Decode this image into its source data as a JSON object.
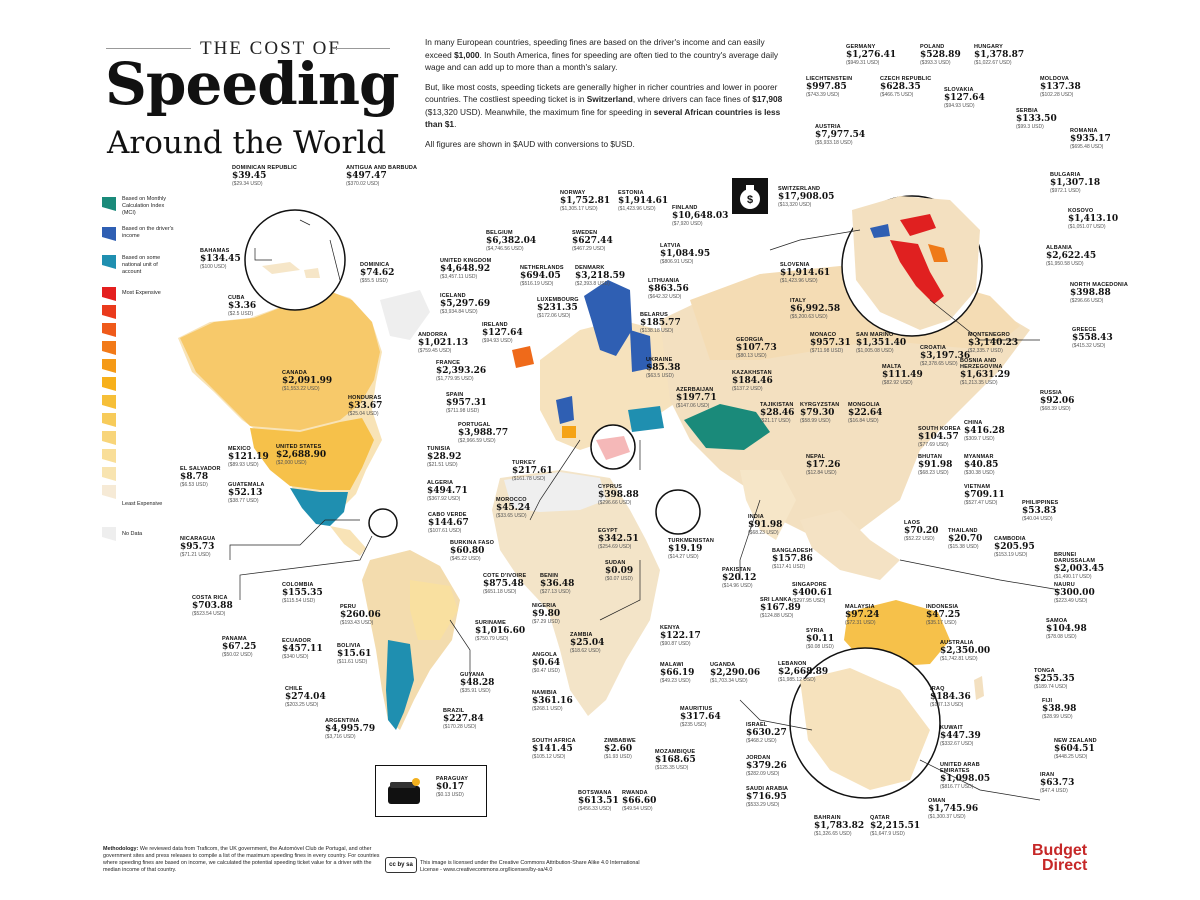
{
  "header": {
    "small_title": "THE COST OF",
    "big_title": "Speeding",
    "subtitle": "Around the World"
  },
  "intro": {
    "p1_a": "In many European countries, speeding fines are based on the driver's income and can easily exceed ",
    "p1_b": "$1,000",
    "p1_c": ". In South America, fines for speeding are often tied to the country's average daily wage and can add up to more than a month's salary.",
    "p2_a": "But, like most costs, speeding tickets are generally higher in richer countries and lower in poorer countries. The costliest speeding ticket is in ",
    "p2_b": "Switzerland",
    "p2_c": ", where drivers can face fines of ",
    "p2_d": "$17,908",
    "p2_e": " ($13,320 USD). Meanwhile, the maximum fine for speeding in ",
    "p2_f": "several African countries is less than $1",
    "p2_g": ".",
    "p3": "All figures are shown in $AUD with conversions to $USD."
  },
  "legend": {
    "items": [
      {
        "label": "Based on Monthly Calculation Index (MCI)",
        "color": "#1a8a7a"
      },
      {
        "label": "Based on the driver's income",
        "color": "#2f5fb3"
      },
      {
        "label": "Based on some national unit of account",
        "color": "#1f8fb0"
      },
      {
        "label": "Most Expensive",
        "color": "#e02020"
      },
      {
        "label": "Least Expensive",
        "color": "#f6ead6"
      },
      {
        "label": "No Data",
        "color": "#eeeeee"
      }
    ],
    "gradient": [
      "#e41f1f",
      "#ea3a1c",
      "#ef5a1a",
      "#f27a18",
      "#f59a16",
      "#f7b01a",
      "#f6bf38",
      "#f7cb5a",
      "#f8d57a",
      "#f9de98",
      "#f8e4b0",
      "#f6ead6"
    ]
  },
  "countries": [
    {
      "name": "Dominican Republic",
      "value": "$39.45",
      "usd": "($29.34 USD)"
    },
    {
      "name": "Antigua and Barbuda",
      "value": "$497.47",
      "usd": "($370.02 USD)"
    },
    {
      "name": "Bahamas",
      "value": "$134.45",
      "usd": "($100 USD)"
    },
    {
      "name": "Dominica",
      "value": "$74.62",
      "usd": "($55.5 USD)"
    },
    {
      "name": "Cuba",
      "value": "$3.36",
      "usd": "($2.5 USD)"
    },
    {
      "name": "Canada",
      "value": "$2,091.99",
      "usd": "($1,553.22 USD)"
    },
    {
      "name": "Honduras",
      "value": "$33.67",
      "usd": "($25.04 USD)"
    },
    {
      "name": "United States",
      "value": "$2,688.90",
      "usd": "($2,000 USD)"
    },
    {
      "name": "Mexico",
      "value": "$121.19",
      "usd": "($89.93 USD)"
    },
    {
      "name": "El Salvador",
      "value": "$8.78",
      "usd": "($6.53 USD)"
    },
    {
      "name": "Guatemala",
      "value": "$52.13",
      "usd": "($38.77 USD)"
    },
    {
      "name": "Nicaragua",
      "value": "$95.73",
      "usd": "($71.21 USD)"
    },
    {
      "name": "Colombia",
      "value": "$155.35",
      "usd": "($115.54 USD)"
    },
    {
      "name": "Costa Rica",
      "value": "$703.88",
      "usd": "($523.54 USD)"
    },
    {
      "name": "Peru",
      "value": "$260.06",
      "usd": "($193.43 USD)"
    },
    {
      "name": "Panama",
      "value": "$67.25",
      "usd": "($50.02 USD)"
    },
    {
      "name": "Ecuador",
      "value": "$457.11",
      "usd": "($340 USD)"
    },
    {
      "name": "Bolivia",
      "value": "$15.61",
      "usd": "($11.61 USD)"
    },
    {
      "name": "Chile",
      "value": "$274.04",
      "usd": "($203.25 USD)"
    },
    {
      "name": "Argentina",
      "value": "$4,995.79",
      "usd": "($3,716 USD)"
    },
    {
      "name": "Suriname",
      "value": "$1,016.60",
      "usd": "($750.79 USD)"
    },
    {
      "name": "Guyana",
      "value": "$48.28",
      "usd": "($35.91 USD)"
    },
    {
      "name": "Brazil",
      "value": "$227.84",
      "usd": "($170.28 USD)"
    },
    {
      "name": "Paraguay",
      "value": "$0.17",
      "usd": "($0.13 USD)"
    },
    {
      "name": "Norway",
      "value": "$1,752.81",
      "usd": "($1,305.17 USD)"
    },
    {
      "name": "Estonia",
      "value": "$1,914.61",
      "usd": "($1,423.96 USD)"
    },
    {
      "name": "Finland",
      "value": "$10,648.03",
      "usd": "($7,920 USD)"
    },
    {
      "name": "Belgium",
      "value": "$6,382.04",
      "usd": "($4,746.56 USD)"
    },
    {
      "name": "Sweden",
      "value": "$627.44",
      "usd": "($467.29 USD)"
    },
    {
      "name": "Latvia",
      "value": "$1,084.95",
      "usd": "($806.91 USD)"
    },
    {
      "name": "United Kingdom",
      "value": "$4,648.92",
      "usd": "($3,457.11 USD)"
    },
    {
      "name": "Netherlands",
      "value": "$694.05",
      "usd": "($516.19 USD)"
    },
    {
      "name": "Denmark",
      "value": "$3,218.59",
      "usd": "($2,393.8 USD)"
    },
    {
      "name": "Lithuania",
      "value": "$863.56",
      "usd": "($642.32 USD)"
    },
    {
      "name": "Iceland",
      "value": "$5,297.69",
      "usd": "($3,934.84 USD)"
    },
    {
      "name": "Luxembourg",
      "value": "$231.35",
      "usd": "($172.06 USD)"
    },
    {
      "name": "Belarus",
      "value": "$185.77",
      "usd": "($138.18 USD)"
    },
    {
      "name": "Ireland",
      "value": "$127.64",
      "usd": "($94.93 USD)"
    },
    {
      "name": "Andorra",
      "value": "$1,021.13",
      "usd": "($759.45 USD)"
    },
    {
      "name": "Ukraine",
      "value": "$85.38",
      "usd": "($63.5 USD)"
    },
    {
      "name": "France",
      "value": "$2,393.26",
      "usd": "($1,779.95 USD)"
    },
    {
      "name": "Georgia",
      "value": "$107.73",
      "usd": "($80.13 USD)"
    },
    {
      "name": "Spain",
      "value": "$957.31",
      "usd": "($711.98 USD)"
    },
    {
      "name": "Azerbaijan",
      "value": "$197.71",
      "usd": "($147.06 USD)"
    },
    {
      "name": "Kazakhstan",
      "value": "$184.46",
      "usd": "($137.2 USD)"
    },
    {
      "name": "Portugal",
      "value": "$3,988.77",
      "usd": "($2,966.59 USD)"
    },
    {
      "name": "Tajikistan",
      "value": "$28.46",
      "usd": "($21.17 USD)"
    },
    {
      "name": "Kyrgyzstan",
      "value": "$79.30",
      "usd": "($58.99 USD)"
    },
    {
      "name": "Mongolia",
      "value": "$22.64",
      "usd": "($16.84 USD)"
    },
    {
      "name": "Tunisia",
      "value": "$28.92",
      "usd": "($21.51 USD)"
    },
    {
      "name": "Turkey",
      "value": "$217.61",
      "usd": "($161.78 USD)"
    },
    {
      "name": "Algeria",
      "value": "$494.71",
      "usd": "($367.92 USD)"
    },
    {
      "name": "Cyprus",
      "value": "$398.88",
      "usd": "($296.66 USD)"
    },
    {
      "name": "Morocco",
      "value": "$45.24",
      "usd": "($33.65 USD)"
    },
    {
      "name": "Cabo Verde",
      "value": "$144.67",
      "usd": "($107.61 USD)"
    },
    {
      "name": "Egypt",
      "value": "$342.51",
      "usd": "($254.69 USD)"
    },
    {
      "name": "Burkina Faso",
      "value": "$60.80",
      "usd": "($45.22 USD)"
    },
    {
      "name": "Turkmenistan",
      "value": "$19.19",
      "usd": "($14.27 USD)"
    },
    {
      "name": "Sudan",
      "value": "$0.09",
      "usd": "($0.07 USD)"
    },
    {
      "name": "Cote d'Ivoire",
      "value": "$875.48",
      "usd": "($651.18 USD)"
    },
    {
      "name": "Benin",
      "value": "$36.48",
      "usd": "($27.13 USD)"
    },
    {
      "name": "Nigeria",
      "value": "$9.80",
      "usd": "($7.29 USD)"
    },
    {
      "name": "Pakistan",
      "value": "$20.12",
      "usd": "($14.96 USD)"
    },
    {
      "name": "Sri Lanka",
      "value": "$167.89",
      "usd": "($124.88 USD)"
    },
    {
      "name": "Zambia",
      "value": "$25.04",
      "usd": "($18.62 USD)"
    },
    {
      "name": "Angola",
      "value": "$0.64",
      "usd": "($0.47 USD)"
    },
    {
      "name": "Kenya",
      "value": "$122.17",
      "usd": "($90.87 USD)"
    },
    {
      "name": "Malawi",
      "value": "$66.19",
      "usd": "($49.23 USD)"
    },
    {
      "name": "Uganda",
      "value": "$2,290.06",
      "usd": "($1,703.34 USD)"
    },
    {
      "name": "Namibia",
      "value": "$361.16",
      "usd": "($268.1 USD)"
    },
    {
      "name": "Mauritius",
      "value": "$317.64",
      "usd": "($235 USD)"
    },
    {
      "name": "South Africa",
      "value": "$141.45",
      "usd": "($105.12 USD)"
    },
    {
      "name": "Zimbabwe",
      "value": "$2.60",
      "usd": "($1.93 USD)"
    },
    {
      "name": "Mozambique",
      "value": "$168.65",
      "usd": "($125.35 USD)"
    },
    {
      "name": "Botswana",
      "value": "$613.51",
      "usd": "($456.33 USD)"
    },
    {
      "name": "Rwanda",
      "value": "$66.60",
      "usd": "($49.54 USD)"
    },
    {
      "name": "Switzerland",
      "value": "$17,908.05",
      "usd": "($13,320 USD)"
    },
    {
      "name": "Germany",
      "value": "$1,276.41",
      "usd": "($949.31 USD)"
    },
    {
      "name": "Poland",
      "value": "$528.89",
      "usd": "($393.3 USD)"
    },
    {
      "name": "Hungary",
      "value": "$1,378.87",
      "usd": "($1,022.67 USD)"
    },
    {
      "name": "Liechtenstein",
      "value": "$997.85",
      "usd": "($743.39 USD)"
    },
    {
      "name": "Czech Republic",
      "value": "$628.35",
      "usd": "($466.75 USD)"
    },
    {
      "name": "Moldova",
      "value": "$137.38",
      "usd": "($102.28 USD)"
    },
    {
      "name": "Slovakia",
      "value": "$127.64",
      "usd": "($94.93 USD)"
    },
    {
      "name": "Serbia",
      "value": "$133.50",
      "usd": "($99.3 USD)"
    },
    {
      "name": "Austria",
      "value": "$7,977.54",
      "usd": "($5,933.18 USD)"
    },
    {
      "name": "Romania",
      "value": "$935.17",
      "usd": "($695.48 USD)"
    },
    {
      "name": "Bulgaria",
      "value": "$1,307.18",
      "usd": "($972.1 USD)"
    },
    {
      "name": "Kosovo",
      "value": "$1,413.10",
      "usd": "($1,051.07 USD)"
    },
    {
      "name": "Slovenia",
      "value": "$1,914.61",
      "usd": "($1,423.96 USD)"
    },
    {
      "name": "Albania",
      "value": "$2,622.45",
      "usd": "($1,950.58 USD)"
    },
    {
      "name": "Italy",
      "value": "$6,992.58",
      "usd": "($5,200.63 USD)"
    },
    {
      "name": "North Macedonia",
      "value": "$398.88",
      "usd": "($296.66 USD)"
    },
    {
      "name": "Monaco",
      "value": "$957.31",
      "usd": "($711.98 USD)"
    },
    {
      "name": "San Marino",
      "value": "$1,351.40",
      "usd": "($1,005.08 USD)"
    },
    {
      "name": "Montenegro",
      "value": "$3,140.23",
      "usd": "($2,335.7 USD)"
    },
    {
      "name": "Greece",
      "value": "$558.43",
      "usd": "($415.32 USD)"
    },
    {
      "name": "Croatia",
      "value": "$3,197.36",
      "usd": "($2,378.65 USD)"
    },
    {
      "name": "Malta",
      "value": "$111.49",
      "usd": "($82.92 USD)"
    },
    {
      "name": "Bosnia and Herzegovina",
      "value": "$1,631.29",
      "usd": "($1,213.35 USD)"
    },
    {
      "name": "Russia",
      "value": "$92.06",
      "usd": "($68.39 USD)"
    },
    {
      "name": "China",
      "value": "$416.28",
      "usd": "($309.7 USD)"
    },
    {
      "name": "South Korea",
      "value": "$104.57",
      "usd": "($77.69 USD)"
    },
    {
      "name": "Nepal",
      "value": "$17.26",
      "usd": "($12.84 USD)"
    },
    {
      "name": "Bhutan",
      "value": "$91.98",
      "usd": "($68.23 USD)"
    },
    {
      "name": "Myanmar",
      "value": "$40.85",
      "usd": "($30.38 USD)"
    },
    {
      "name": "Vietnam",
      "value": "$709.11",
      "usd": "($527.47 USD)"
    },
    {
      "name": "India",
      "value": "$91.98",
      "usd": "($68.23 USD)"
    },
    {
      "name": "Philippines",
      "value": "$53.83",
      "usd": "($40.04 USD)"
    },
    {
      "name": "Laos",
      "value": "$70.20",
      "usd": "($52.22 USD)"
    },
    {
      "name": "Thailand",
      "value": "$20.70",
      "usd": "($15.38 USD)"
    },
    {
      "name": "Cambodia",
      "value": "$205.95",
      "usd": "($153.19 USD)"
    },
    {
      "name": "Bangladesh",
      "value": "$157.86",
      "usd": "($117.41 USD)"
    },
    {
      "name": "Brunei Darussalam",
      "value": "$2,003.45",
      "usd": "($1,490.17 USD)"
    },
    {
      "name": "Singapore",
      "value": "$400.61",
      "usd": "($297.95 USD)"
    },
    {
      "name": "Nauru",
      "value": "$300.00",
      "usd": "($223.49 USD)"
    },
    {
      "name": "Malaysia",
      "value": "$97.24",
      "usd": "($72.31 USD)"
    },
    {
      "name": "Indonesia",
      "value": "$47.25",
      "usd": "($35.17 USD)"
    },
    {
      "name": "Samoa",
      "value": "$104.98",
      "usd": "($78.08 USD)"
    },
    {
      "name": "Syria",
      "value": "$0.11",
      "usd": "($0.08 USD)"
    },
    {
      "name": "Australia",
      "value": "$2,350.00",
      "usd": "($1,742.81 USD)"
    },
    {
      "name": "Lebanon",
      "value": "$2,668.89",
      "usd": "($1,985.12 USD)"
    },
    {
      "name": "Tonga",
      "value": "$255.35",
      "usd": "($189.74 USD)"
    },
    {
      "name": "Iraq",
      "value": "$184.36",
      "usd": "($137.13 USD)"
    },
    {
      "name": "Fiji",
      "value": "$38.98",
      "usd": "($28.99 USD)"
    },
    {
      "name": "Israel",
      "value": "$630.27",
      "usd": "($468.2 USD)"
    },
    {
      "name": "Kuwait",
      "value": "$447.39",
      "usd": "($332.67 USD)"
    },
    {
      "name": "New Zealand",
      "value": "$604.51",
      "usd": "($448.25 USD)"
    },
    {
      "name": "Jordan",
      "value": "$379.26",
      "usd": "($282.09 USD)"
    },
    {
      "name": "United Arab Emirates",
      "value": "$1,098.05",
      "usd": "($816.77 USD)"
    },
    {
      "name": "Iran",
      "value": "$63.73",
      "usd": "($47.4 USD)"
    },
    {
      "name": "Saudi Arabia",
      "value": "$716.95",
      "usd": "($533.29 USD)"
    },
    {
      "name": "Oman",
      "value": "$1,745.96",
      "usd": "($1,300.37 USD)"
    },
    {
      "name": "Bahrain",
      "value": "$1,783.82",
      "usd": "($1,326.65 USD)"
    },
    {
      "name": "Qatar",
      "value": "$2,215.51",
      "usd": "($1,647.9 USD)"
    }
  ],
  "footer": {
    "method_label": "Methodology:",
    "method_text": " We reviewed data from Traficom, the UK government, the Automóvel Club de Portugal, and other government sites and press releases to compile a list of the maximum speeding fines in every country. For countries where speeding fines are based on income, we calculated the potential speeding ticket value for a driver with the median income of that country.",
    "cc_badge": "cc by sa",
    "license": "This image is licensed under the Creative Commons Attribution-Share Alike 4.0 International License - www.creativecommons.org/licenses/by-sa/4.0",
    "brand_1": "Budget",
    "brand_2": "Direct"
  }
}
